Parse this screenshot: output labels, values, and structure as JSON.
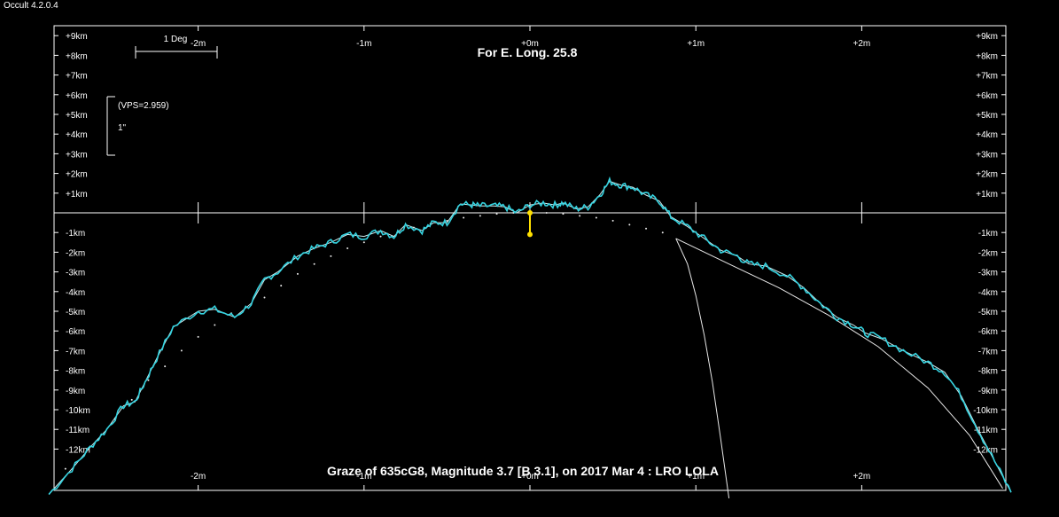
{
  "window": {
    "title": "Occult 4.2.0.4"
  },
  "chart_data": {
    "type": "line",
    "title": "For E. Long. 25.8",
    "footer": "Graze of  635cG8,  Magnitude 3.7 [B 3.1],  on 2017 Mar  4  :  LRO LOLA",
    "x_ticks_top": [
      "-2m",
      "-1m",
      "+0m",
      "+1m",
      "+2m"
    ],
    "x_ticks_bottom": [
      "-2m",
      "-1m",
      "+0m",
      "+1m",
      "+2m"
    ],
    "x_tick_values": [
      -2,
      -1,
      0,
      1,
      2
    ],
    "xlim": [
      -2.9,
      2.9
    ],
    "ylim": [
      -14,
      9
    ],
    "y_ticks_pos": [
      "+9km",
      "+8km",
      "+7km",
      "+6km",
      "+5km",
      "+4km",
      "+3km",
      "+2km",
      "+1km"
    ],
    "y_ticks_neg": [
      "-1km",
      "-2km",
      "-3km",
      "-4km",
      "-5km",
      "-6km",
      "-7km",
      "-8km",
      "-9km",
      "-10km",
      "-11km",
      "-12km"
    ],
    "scale_bar_label": "1 Deg",
    "vps_label": "(VPS=2.959)",
    "arcsec_label": "1\"",
    "colors": {
      "profile": "#35d3e0",
      "smooth": "#cfeff2",
      "marker": "#ffe000",
      "axes": "#ffffff"
    },
    "series": [
      {
        "x": [
          -2.9,
          -2.76,
          -2.65,
          -2.55,
          -2.45,
          -2.38,
          -2.32,
          -2.25,
          -2.15,
          -2.0,
          -1.9,
          -1.78,
          -1.68,
          -1.6,
          -1.52,
          -1.4,
          -1.3,
          -1.2,
          -1.1,
          -1.0,
          -0.9,
          -0.82,
          -0.75,
          -0.65,
          -0.58,
          -0.5,
          -0.42,
          -0.35,
          -0.3,
          -0.22,
          -0.15,
          -0.08,
          0.0,
          0.08,
          0.15,
          0.2,
          0.28,
          0.35,
          0.42,
          0.48,
          0.55,
          0.62,
          0.7,
          0.78,
          0.85,
          0.95,
          1.05,
          1.15,
          1.25,
          1.32,
          1.42,
          1.55,
          1.65,
          1.75,
          1.85,
          1.95,
          2.02,
          2.12,
          2.25,
          2.4,
          2.5,
          2.6,
          2.7,
          2.8,
          2.9
        ],
        "y": [
          -14.3,
          -13.0,
          -11.9,
          -11.0,
          -9.8,
          -9.6,
          -8.6,
          -7.4,
          -5.8,
          -5.0,
          -4.9,
          -5.3,
          -4.6,
          -3.4,
          -3.0,
          -2.2,
          -1.8,
          -1.5,
          -1.1,
          -1.2,
          -0.9,
          -1.2,
          -0.6,
          -0.9,
          -0.5,
          -0.5,
          0.45,
          0.4,
          0.35,
          0.35,
          0.3,
          0.0,
          0.4,
          0.5,
          0.4,
          0.5,
          0.2,
          0.3,
          0.9,
          1.6,
          1.4,
          1.3,
          0.9,
          0.6,
          -0.2,
          -0.7,
          -1.3,
          -1.9,
          -2.2,
          -2.6,
          -2.7,
          -3.2,
          -3.8,
          -4.6,
          -5.3,
          -5.7,
          -6.1,
          -6.4,
          -7.0,
          -7.6,
          -8.1,
          -9.3,
          -11.0,
          -12.6,
          -14.2
        ]
      }
    ],
    "limb_dots": {
      "x": [
        -2.8,
        -2.6,
        -2.5,
        -2.4,
        -2.3,
        -2.2,
        -2.1,
        -2.0,
        -1.9,
        -1.8,
        -1.6,
        -1.5,
        -1.4,
        -1.3,
        -1.2,
        -1.1,
        -1.0,
        -0.9,
        -0.8,
        -0.7,
        -0.6,
        -0.5,
        -0.4,
        -0.3,
        -0.2,
        -0.1,
        0.1,
        0.2,
        0.3,
        0.4,
        0.5,
        0.6,
        0.7,
        0.8
      ],
      "y": [
        -13.0,
        -11.5,
        -10.5,
        -9.5,
        -8.5,
        -7.8,
        -7.0,
        -6.3,
        -5.7,
        -5.1,
        -4.3,
        -3.7,
        -3.1,
        -2.6,
        -2.2,
        -1.8,
        -1.5,
        -1.2,
        -1.0,
        -0.75,
        -0.55,
        -0.4,
        -0.25,
        -0.15,
        -0.05,
        0.0,
        0.0,
        -0.05,
        -0.15,
        -0.25,
        -0.4,
        -0.6,
        -0.8,
        -1.0
      ]
    },
    "curve_steep": {
      "x": [
        0.88,
        0.95,
        1.0,
        1.05,
        1.1,
        1.15,
        1.2
      ],
      "y": [
        -1.3,
        -2.6,
        -4.2,
        -6.2,
        -8.6,
        -11.5,
        -14.5
      ]
    },
    "curve_wide": {
      "x": [
        0.88,
        1.2,
        1.5,
        1.8,
        2.1,
        2.4,
        2.65,
        2.85
      ],
      "y": [
        -1.3,
        -2.6,
        -3.8,
        -5.2,
        -6.8,
        -8.9,
        -11.3,
        -14.0
      ]
    },
    "star_marker": {
      "x": 0.0,
      "y_top": 0.0,
      "y_bottom": -1.1
    }
  }
}
